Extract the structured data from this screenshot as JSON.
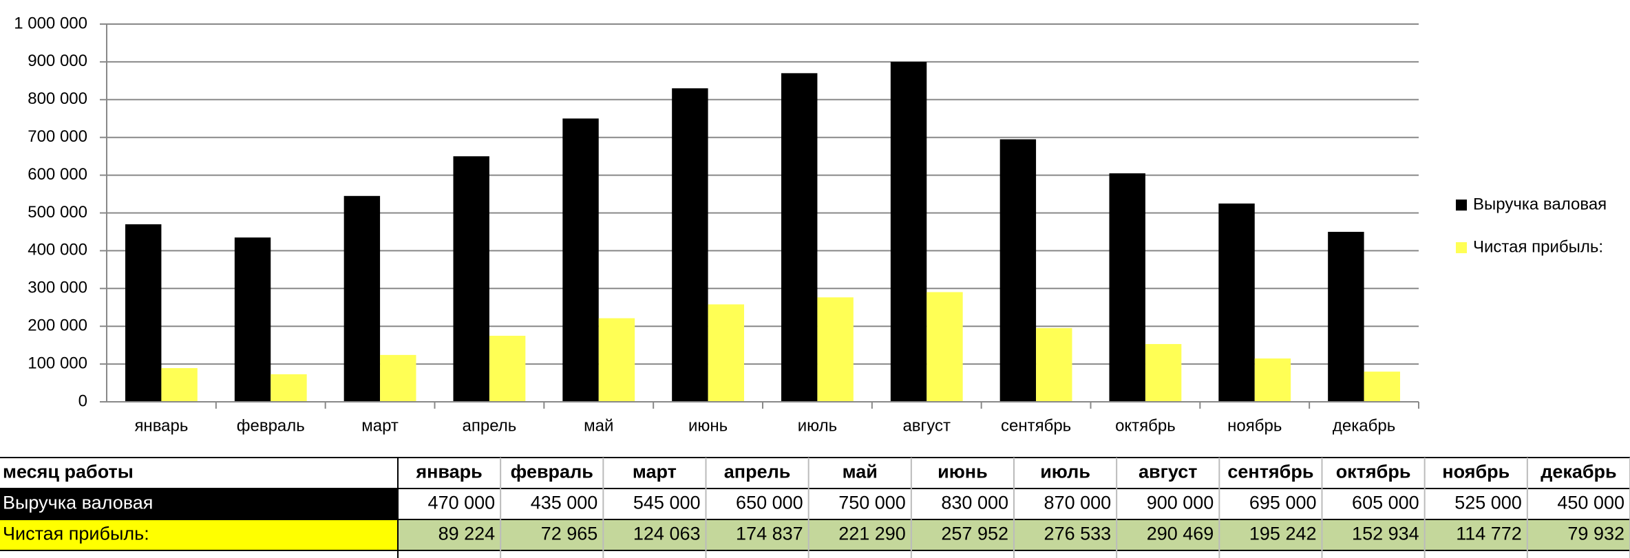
{
  "chart_data": {
    "type": "bar",
    "categories": [
      "январь",
      "февраль",
      "март",
      "апрель",
      "май",
      "июнь",
      "июль",
      "август",
      "сентябрь",
      "октябрь",
      "ноябрь",
      "декабрь"
    ],
    "series": [
      {
        "name": "Выручка валовая",
        "color": "#000000",
        "values": [
          470000,
          435000,
          545000,
          650000,
          750000,
          830000,
          870000,
          900000,
          695000,
          605000,
          525000,
          450000
        ],
        "value_labels": [
          "470 000",
          "435 000",
          "545 000",
          "650 000",
          "750 000",
          "830 000",
          "870 000",
          "900 000",
          "695 000",
          "605 000",
          "525 000",
          "450 000"
        ]
      },
      {
        "name": "Чистая прибыль:",
        "color": "#ffff55",
        "values": [
          89224,
          72965,
          124063,
          174837,
          221290,
          257952,
          276533,
          290469,
          195242,
          152934,
          114772,
          79932
        ],
        "value_labels": [
          "89 224",
          "72 965",
          "124 063",
          "174 837",
          "221 290",
          "257 952",
          "276 533",
          "290 469",
          "195 242",
          "152 934",
          "114 772",
          "79 932"
        ]
      }
    ],
    "ylim": [
      0,
      1000000
    ],
    "yticks": [
      0,
      {
        "value": 100000,
        "label": "100 000"
      },
      {
        "value": 200000,
        "label": "200 000"
      },
      {
        "value": 300000,
        "label": "300 000"
      },
      {
        "value": 400000,
        "label": "400 000"
      },
      {
        "value": 500000,
        "label": "500 000"
      },
      {
        "value": 600000,
        "label": "600 000"
      },
      {
        "value": 700000,
        "label": "700 000"
      },
      {
        "value": 800000,
        "label": "800 000"
      },
      {
        "value": 900000,
        "label": "900 000"
      },
      {
        "value": 1000000,
        "label": "1 000 000"
      }
    ],
    "grid": true,
    "legend": "right",
    "table_header": "месяц работы"
  }
}
